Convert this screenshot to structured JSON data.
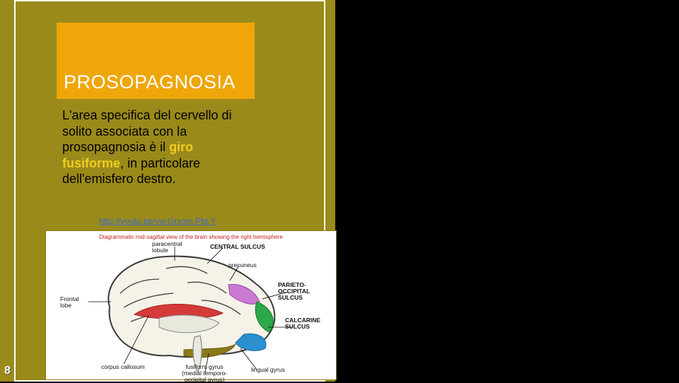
{
  "colors": {
    "page_bg": "#000000",
    "panel_bg": "#9a8a1a",
    "accent_box": "#eea608",
    "border": "#ffffff",
    "highlight_text": "#f0cf20",
    "link": "#3a6bcc",
    "caption": "#c02020"
  },
  "title": "PROSOPAGNOSIA",
  "body": {
    "pre": "L'area specifica del cervello di solito associata con la prosopagnosia è il ",
    "hl": "giro fusiforme",
    "post": ", in particolare dell'emisfero destro."
  },
  "link": {
    "text": "http://youtu.be/vw.Grxom.Pbt.Y",
    "href": "http://youtu.be/vw.Grxom.Pbt.Y"
  },
  "page_number": "8",
  "diagram": {
    "caption": "Diagrammatic mid-sagittal view of the brain showing the right hemisphere",
    "labels": {
      "paracentral": "paracentral\nlobule",
      "central_sulcus": "CENTRAL SULCUS",
      "precuneus": "precuneus",
      "parieto": "PARIETO-OCCIPITAL\nSULCUS",
      "calcarine": "CALCARINE\nSULCUS",
      "frontal": "Frontal\nlobe",
      "corpus": "corpus callosum",
      "fusiform": "fusiform gyrus\n(medial temporo-\noccipital gyrus)",
      "lingual": "lingual gyrus"
    },
    "region_colors": {
      "cortex_outline": "#3a3a3a",
      "corpus_callosum": "#d43a3a",
      "parietal": "#c978d4",
      "occipital_upper": "#2aa84a",
      "occipital_lower": "#2a90d0",
      "temporal_inf": "#8a7a1a",
      "inner": "#e8e8dc"
    }
  }
}
